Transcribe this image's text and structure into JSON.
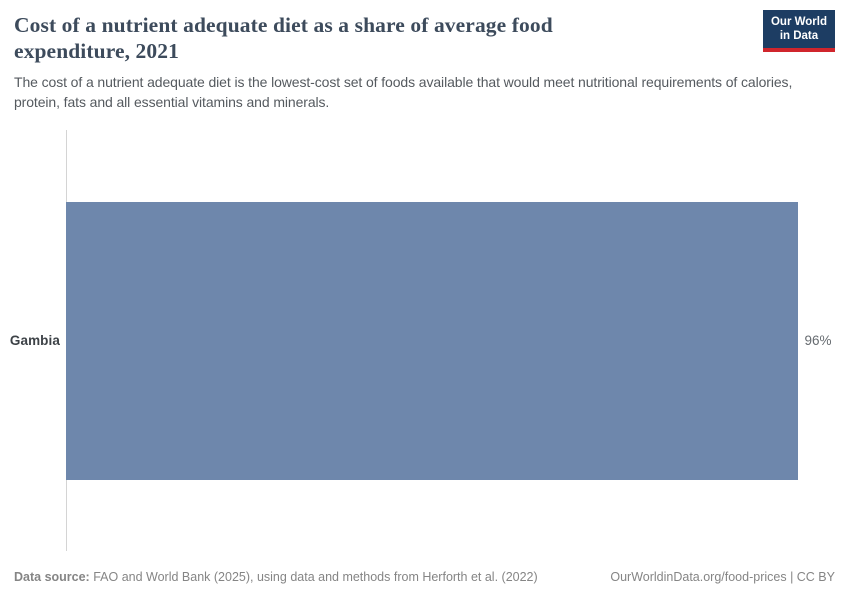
{
  "header": {
    "title": "Cost of a nutrient adequate diet as a share of average food expenditure, 2021",
    "subtitle": "The cost of a nutrient adequate diet is the lowest-cost set of foods available that would meet nutritional requirements of calories, protein, fats and all essential vitamins and minerals.",
    "logo": {
      "line1": "Our World",
      "line2": "in Data",
      "bg_color": "#1d3d63",
      "accent_color": "#d0252c"
    }
  },
  "chart_data": {
    "type": "bar",
    "orientation": "horizontal",
    "title": "Cost of a nutrient adequate diet as a share of average food expenditure, 2021",
    "categories": [
      "Gambia"
    ],
    "values": [
      96
    ],
    "value_labels": [
      "96%"
    ],
    "unit": "%",
    "xlim": [
      0,
      100
    ],
    "grid": false,
    "legend": "none",
    "bar_color": "#6e87ac",
    "axis_line_color": "#d4d4d4"
  },
  "footer": {
    "datasource_label": "Data source:",
    "datasource_text": "FAO and World Bank (2025), using data and methods from Herforth et al. (2022)",
    "rights": "OurWorldinData.org/food-prices | CC BY"
  }
}
